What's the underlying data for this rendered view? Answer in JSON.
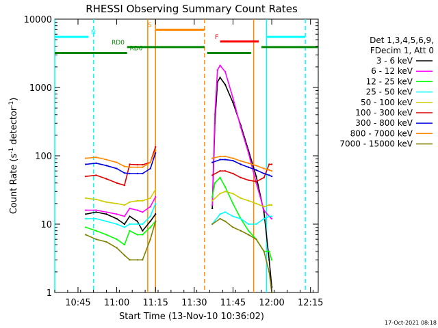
{
  "window": {
    "footer_date": "17-Oct-2021 08:18"
  },
  "chart_data": {
    "type": "line",
    "title": "RHESSI Observing Summary Count Rates",
    "xlabel": "Start Time (13-Nov-10 10:36:02)",
    "ylabel_main": "Count Rate (s",
    "ylabel_sup1": "-1",
    "ylabel_mid": " detector",
    "ylabel_sup2": "-1",
    "ylabel_end": ")",
    "y_scale": "log",
    "ylim": [
      1,
      10000
    ],
    "xlim": [
      "10:36",
      "12:18"
    ],
    "x_ticks": [
      {
        "t": "10:45",
        "label": "10:45"
      },
      {
        "t": "11:00",
        "label": "11:00"
      },
      {
        "t": "11:15",
        "label": "11:15"
      },
      {
        "t": "11:30",
        "label": "11:30"
      },
      {
        "t": "11:45",
        "label": "11:45"
      },
      {
        "t": "12:00",
        "label": "12:00"
      },
      {
        "t": "12:15",
        "label": "12:15"
      }
    ],
    "y_ticks": [
      {
        "v": 1,
        "label": "1"
      },
      {
        "v": 10,
        "label": "10"
      },
      {
        "v": 100,
        "label": "100"
      },
      {
        "v": 1000,
        "label": "1000"
      },
      {
        "v": 10000,
        "label": "10000"
      }
    ],
    "legend": {
      "placement": "right",
      "header1": "Det 1,3,4,5,6,9,",
      "header2": "FDecim 1, Att 0",
      "entries": [
        {
          "label": "3 - 6 keV",
          "color": "#000000"
        },
        {
          "label": "6 - 12 keV",
          "color": "#ff00ff"
        },
        {
          "label": "12 - 25 keV",
          "color": "#00ff00"
        },
        {
          "label": "25 - 50 keV",
          "color": "#00ffff"
        },
        {
          "label": "50 - 100 keV",
          "color": "#cccc00"
        },
        {
          "label": "100 - 300 keV",
          "color": "#dd0000"
        },
        {
          "label": "300 - 800 keV",
          "color": "#0000dd"
        },
        {
          "label": "800 - 7000 keV",
          "color": "#ff8800"
        },
        {
          "label": "7000 - 15000 keV",
          "color": "#808000"
        }
      ]
    },
    "flags": [
      {
        "name": "N",
        "color": "#00ffff",
        "y": 5500,
        "intervals": [
          [
            "10:36",
            "10:49"
          ],
          [
            "11:58",
            "12:13"
          ]
        ],
        "label_at": "10:50"
      },
      {
        "name": "S",
        "color": "#ff8800",
        "y": 7000,
        "intervals": [
          [
            "11:15",
            "11:34"
          ]
        ],
        "label_at": "11:12"
      },
      {
        "name": "F",
        "color": "#ff0000",
        "y": 4700,
        "intervals": [
          [
            "11:40",
            "11:55"
          ]
        ],
        "label_at": "11:38"
      },
      {
        "name": "RD0",
        "color": "#008800",
        "y": 3900,
        "intervals": [
          [
            "11:04",
            "11:34"
          ],
          [
            "11:56",
            "12:18"
          ]
        ],
        "label_at": "10:58"
      },
      {
        "name": "RD6",
        "color": "#008800",
        "y": 3200,
        "intervals": [
          [
            "10:36",
            "11:04"
          ],
          [
            "11:35",
            "11:52"
          ]
        ],
        "label_at": "11:05"
      }
    ],
    "markers": [
      {
        "t": "10:36",
        "color": "#00ffff",
        "style": "solid"
      },
      {
        "t": "10:51",
        "color": "#00ffff",
        "style": "dashed"
      },
      {
        "t": "11:12",
        "color": "#ff8800",
        "style": "solid"
      },
      {
        "t": "11:15",
        "color": "#ff8800",
        "style": "solid"
      },
      {
        "t": "11:34",
        "color": "#ff8800",
        "style": "dashed"
      },
      {
        "t": "11:53",
        "color": "#ff8800",
        "style": "solid"
      },
      {
        "t": "11:58",
        "color": "#00ffff",
        "style": "solid"
      },
      {
        "t": "12:13",
        "color": "#00ffff",
        "style": "dashed"
      }
    ],
    "series": [
      {
        "name": "3 - 6 keV",
        "color": "#000000",
        "points": [
          [
            "10:48",
            14
          ],
          [
            "10:52",
            15
          ],
          [
            "10:56",
            14
          ],
          [
            "11:00",
            12
          ],
          [
            "11:03",
            10
          ],
          [
            "11:05",
            13
          ],
          [
            "11:08",
            11
          ],
          [
            "11:10",
            8
          ],
          [
            "11:13",
            11
          ],
          [
            "11:15",
            14
          ],
          null,
          [
            "11:37",
            17
          ],
          [
            "11:38",
            300
          ],
          [
            "11:39",
            1200
          ],
          [
            "11:40",
            1400
          ],
          [
            "11:42",
            1100
          ],
          [
            "11:45",
            600
          ],
          [
            "11:48",
            280
          ],
          [
            "11:51",
            120
          ],
          [
            "11:54",
            50
          ],
          [
            "11:57",
            15
          ],
          [
            "11:59",
            3
          ],
          [
            "12:00",
            1.2
          ]
        ]
      },
      {
        "name": "6 - 12 keV",
        "color": "#ff00ff",
        "points": [
          [
            "10:48",
            16
          ],
          [
            "10:52",
            16
          ],
          [
            "10:56",
            15
          ],
          [
            "11:00",
            14
          ],
          [
            "11:03",
            13
          ],
          [
            "11:05",
            17
          ],
          [
            "11:08",
            16
          ],
          [
            "11:10",
            15
          ],
          [
            "11:13",
            18
          ],
          [
            "11:15",
            25
          ],
          null,
          [
            "11:37",
            19
          ],
          [
            "11:38",
            400
          ],
          [
            "11:39",
            1800
          ],
          [
            "11:40",
            2100
          ],
          [
            "11:42",
            1700
          ],
          [
            "11:45",
            700
          ],
          [
            "11:48",
            260
          ],
          [
            "11:51",
            110
          ],
          [
            "11:54",
            40
          ],
          [
            "11:57",
            16
          ],
          [
            "11:59",
            13
          ],
          [
            "12:00",
            12
          ]
        ]
      },
      {
        "name": "12 - 25 keV",
        "color": "#00ff00",
        "points": [
          [
            "10:48",
            9
          ],
          [
            "10:52",
            8
          ],
          [
            "10:56",
            7
          ],
          [
            "11:00",
            6
          ],
          [
            "11:03",
            5
          ],
          [
            "11:05",
            8
          ],
          [
            "11:08",
            7
          ],
          [
            "11:10",
            7
          ],
          [
            "11:13",
            9
          ],
          [
            "11:15",
            11
          ],
          null,
          [
            "11:37",
            25
          ],
          [
            "11:38",
            40
          ],
          [
            "11:40",
            48
          ],
          [
            "11:42",
            35
          ],
          [
            "11:45",
            20
          ],
          [
            "11:48",
            12
          ],
          [
            "11:51",
            8
          ],
          [
            "11:54",
            6
          ],
          [
            "11:57",
            4
          ],
          [
            "11:59",
            4
          ],
          [
            "12:00",
            3
          ]
        ]
      },
      {
        "name": "25 - 50 keV",
        "color": "#00ffff",
        "points": [
          [
            "10:48",
            12
          ],
          [
            "10:52",
            12
          ],
          [
            "10:56",
            11
          ],
          [
            "11:00",
            10
          ],
          [
            "11:03",
            9
          ],
          [
            "11:05",
            10
          ],
          [
            "11:08",
            10
          ],
          [
            "11:10",
            10
          ],
          [
            "11:13",
            13
          ],
          [
            "11:15",
            20
          ],
          null,
          [
            "11:37",
            10
          ],
          [
            "11:40",
            14
          ],
          [
            "11:42",
            15
          ],
          [
            "11:45",
            13
          ],
          [
            "11:48",
            12
          ],
          [
            "11:51",
            10
          ],
          [
            "11:54",
            10
          ],
          [
            "11:57",
            12
          ],
          [
            "11:59",
            13
          ],
          [
            "12:00",
            13
          ]
        ]
      },
      {
        "name": "50 - 100 keV",
        "color": "#cccc00",
        "points": [
          [
            "10:48",
            24
          ],
          [
            "10:52",
            23
          ],
          [
            "10:56",
            21
          ],
          [
            "11:00",
            20
          ],
          [
            "11:03",
            19
          ],
          [
            "11:05",
            21
          ],
          [
            "11:08",
            22
          ],
          [
            "11:10",
            22
          ],
          [
            "11:13",
            24
          ],
          [
            "11:15",
            32
          ],
          null,
          [
            "11:37",
            22
          ],
          [
            "11:40",
            28
          ],
          [
            "11:42",
            30
          ],
          [
            "11:45",
            28
          ],
          [
            "11:48",
            24
          ],
          [
            "11:51",
            22
          ],
          [
            "11:54",
            20
          ],
          [
            "11:57",
            18
          ],
          [
            "11:59",
            19
          ],
          [
            "12:00",
            19
          ]
        ]
      },
      {
        "name": "100 - 300 keV",
        "color": "#dd0000",
        "points": [
          [
            "10:48",
            50
          ],
          [
            "10:52",
            52
          ],
          [
            "10:56",
            46
          ],
          [
            "11:00",
            40
          ],
          [
            "11:03",
            37
          ],
          [
            "11:05",
            75
          ],
          [
            "11:08",
            74
          ],
          [
            "11:10",
            74
          ],
          [
            "11:13",
            80
          ],
          [
            "11:15",
            135
          ],
          null,
          [
            "11:37",
            52
          ],
          [
            "11:40",
            60
          ],
          [
            "11:42",
            60
          ],
          [
            "11:45",
            55
          ],
          [
            "11:48",
            48
          ],
          [
            "11:51",
            44
          ],
          [
            "11:54",
            42
          ],
          [
            "11:57",
            48
          ],
          [
            "11:59",
            75
          ],
          [
            "12:00",
            75
          ]
        ]
      },
      {
        "name": "300 - 800 keV",
        "color": "#0000dd",
        "points": [
          [
            "10:48",
            75
          ],
          [
            "10:52",
            78
          ],
          [
            "10:56",
            72
          ],
          [
            "11:00",
            65
          ],
          [
            "11:03",
            56
          ],
          [
            "11:05",
            55
          ],
          [
            "11:08",
            55
          ],
          [
            "11:10",
            55
          ],
          [
            "11:13",
            65
          ],
          [
            "11:15",
            110
          ],
          null,
          [
            "11:37",
            80
          ],
          [
            "11:40",
            88
          ],
          [
            "11:42",
            88
          ],
          [
            "11:45",
            85
          ],
          [
            "11:48",
            75
          ],
          [
            "11:51",
            68
          ],
          [
            "11:54",
            62
          ],
          [
            "11:57",
            55
          ],
          [
            "11:59",
            52
          ],
          [
            "12:00",
            50
          ]
        ]
      },
      {
        "name": "800 - 7000 keV",
        "color": "#ff8800",
        "points": [
          [
            "10:48",
            92
          ],
          [
            "10:52",
            95
          ],
          [
            "10:56",
            88
          ],
          [
            "11:00",
            80
          ],
          [
            "11:03",
            70
          ],
          [
            "11:05",
            68
          ],
          [
            "11:08",
            68
          ],
          [
            "11:10",
            68
          ],
          [
            "11:13",
            80
          ],
          [
            "11:15",
            120
          ],
          null,
          [
            "11:37",
            92
          ],
          [
            "11:40",
            98
          ],
          [
            "11:42",
            98
          ],
          [
            "11:45",
            92
          ],
          [
            "11:48",
            84
          ],
          [
            "11:51",
            78
          ],
          [
            "11:54",
            72
          ],
          [
            "11:57",
            65
          ],
          [
            "11:59",
            62
          ],
          [
            "12:00",
            60
          ]
        ]
      },
      {
        "name": "7000 - 15000 keV",
        "color": "#808000",
        "points": [
          [
            "10:48",
            7
          ],
          [
            "10:52",
            6
          ],
          [
            "10:56",
            5.5
          ],
          [
            "11:00",
            4.5
          ],
          [
            "11:03",
            3.5
          ],
          [
            "11:05",
            3
          ],
          [
            "11:08",
            3
          ],
          [
            "11:10",
            3
          ],
          [
            "11:13",
            6
          ],
          [
            "11:15",
            11
          ],
          null,
          [
            "11:37",
            10
          ],
          [
            "11:40",
            12
          ],
          [
            "11:42",
            11
          ],
          [
            "11:45",
            9
          ],
          [
            "11:48",
            8
          ],
          [
            "11:51",
            7
          ],
          [
            "11:54",
            6
          ],
          [
            "11:57",
            4
          ],
          [
            "11:59",
            2
          ],
          [
            "12:00",
            1
          ]
        ]
      }
    ]
  }
}
